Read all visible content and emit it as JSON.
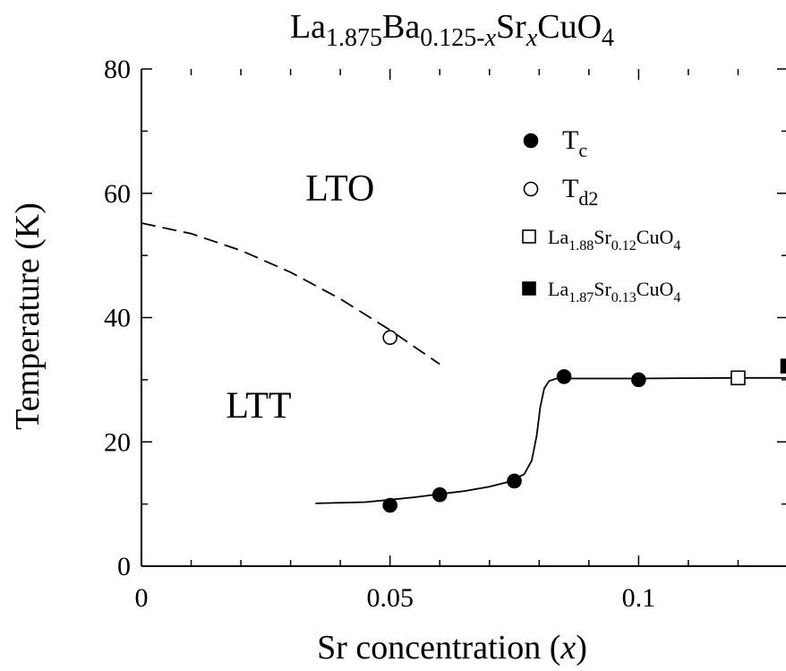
{
  "chart_data": {
    "type": "scatter",
    "title": {
      "parts": [
        {
          "text": "La",
          "style": "normal"
        },
        {
          "text": "1.875",
          "style": "sub"
        },
        {
          "text": "Ba",
          "style": "normal"
        },
        {
          "text": "0.125-",
          "style": "sub"
        },
        {
          "text": "x",
          "style": "sub-italic"
        },
        {
          "text": "Sr",
          "style": "normal"
        },
        {
          "text": "x",
          "style": "sub-italic"
        },
        {
          "text": "CuO",
          "style": "normal"
        },
        {
          "text": "4",
          "style": "sub"
        }
      ]
    },
    "xlabel": {
      "prefix": "Sr concentration (",
      "var": "x",
      "suffix": ")"
    },
    "ylabel": "Temperature (K)",
    "xlim": [
      0,
      0.13
    ],
    "ylim": [
      0,
      80
    ],
    "xticks": [
      {
        "value": 0,
        "label": "0"
      },
      {
        "value": 0.05,
        "label": "0.05"
      },
      {
        "value": 0.1,
        "label": "0.1"
      }
    ],
    "yticks": [
      {
        "value": 0,
        "label": "0"
      },
      {
        "value": 20,
        "label": "20"
      },
      {
        "value": 40,
        "label": "40"
      },
      {
        "value": 60,
        "label": "60"
      },
      {
        "value": 80,
        "label": "80"
      }
    ],
    "regions": [
      {
        "label": "LTO",
        "x": 0.033,
        "y": 61
      },
      {
        "label": "LTT",
        "x": 0.017,
        "y": 26
      }
    ],
    "series": [
      {
        "name": "Tc",
        "name_main": "T",
        "name_sub": "c",
        "marker": "filled-circle",
        "points": [
          [
            0.05,
            9.8
          ],
          [
            0.06,
            11.5
          ],
          [
            0.075,
            13.7
          ],
          [
            0.085,
            30.5
          ],
          [
            0.1,
            30.0
          ]
        ]
      },
      {
        "name": "Td2",
        "name_main": "T",
        "name_sub": "d2",
        "marker": "open-circle",
        "points": [
          [
            0.05,
            36.8
          ]
        ]
      },
      {
        "name": "La1.88Sr0.12CuO4",
        "marker": "open-square",
        "name_parts": [
          {
            "text": "La",
            "style": "normal"
          },
          {
            "text": "1.88",
            "style": "sub"
          },
          {
            "text": "Sr",
            "style": "normal"
          },
          {
            "text": "0.12",
            "style": "sub"
          },
          {
            "text": "CuO",
            "style": "normal"
          },
          {
            "text": "4",
            "style": "sub"
          }
        ],
        "points": [
          [
            0.12,
            30.3
          ]
        ]
      },
      {
        "name": "La1.87Sr0.13CuO4",
        "marker": "filled-square",
        "name_parts": [
          {
            "text": "La",
            "style": "normal"
          },
          {
            "text": "1.87",
            "style": "sub"
          },
          {
            "text": "Sr",
            "style": "normal"
          },
          {
            "text": "0.13",
            "style": "sub"
          },
          {
            "text": "CuO",
            "style": "normal"
          },
          {
            "text": "4",
            "style": "sub"
          }
        ],
        "points": [
          [
            0.13,
            32.2
          ]
        ]
      }
    ],
    "curves": [
      {
        "style": "solid",
        "points": [
          [
            0.035,
            10.1
          ],
          [
            0.045,
            10.3
          ],
          [
            0.05,
            10.7
          ],
          [
            0.055,
            11.1
          ],
          [
            0.06,
            11.6
          ],
          [
            0.065,
            12.1
          ],
          [
            0.07,
            12.8
          ],
          [
            0.074,
            13.6
          ],
          [
            0.077,
            14.8
          ],
          [
            0.0785,
            17.0
          ],
          [
            0.0795,
            21.0
          ],
          [
            0.0802,
            25.5
          ],
          [
            0.081,
            28.6
          ],
          [
            0.082,
            29.8
          ],
          [
            0.0835,
            30.2
          ],
          [
            0.09,
            30.2
          ],
          [
            0.1,
            30.2
          ],
          [
            0.11,
            30.25
          ],
          [
            0.12,
            30.3
          ],
          [
            0.13,
            30.3
          ]
        ]
      },
      {
        "style": "dashed",
        "points": [
          [
            0,
            55.2
          ],
          [
            0.01,
            53.5
          ],
          [
            0.02,
            50.8
          ],
          [
            0.03,
            47.3
          ],
          [
            0.04,
            43.0
          ],
          [
            0.05,
            38.0
          ],
          [
            0.06,
            32.5
          ]
        ]
      }
    ],
    "legend": {
      "placement": "top-right"
    }
  }
}
